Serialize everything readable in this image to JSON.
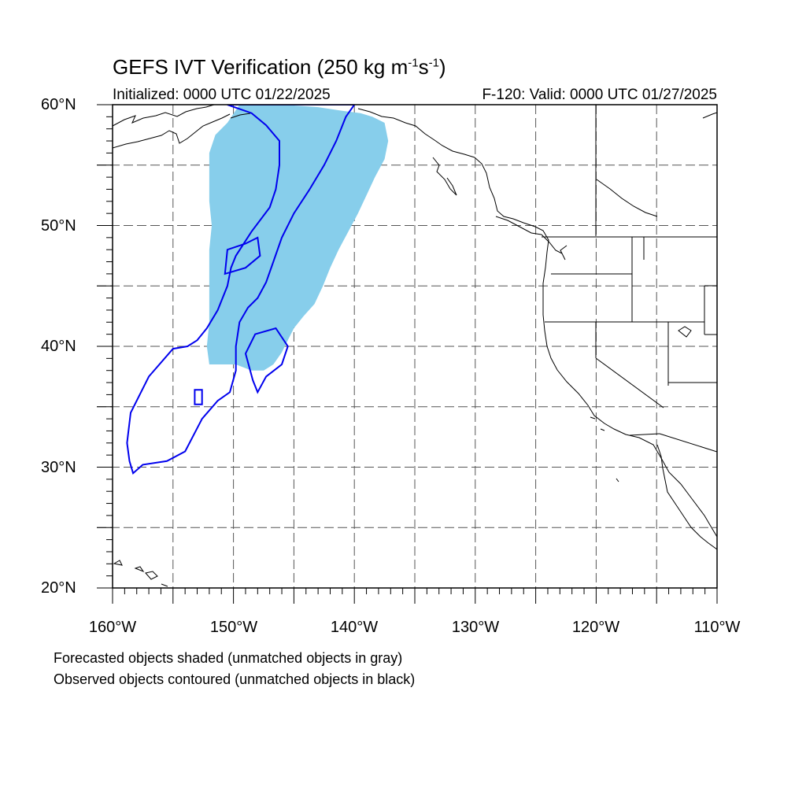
{
  "title": {
    "main": "GEFS IVT Verification (250 kg m",
    "exp1": "-1",
    "mid": "s",
    "exp2": "-1",
    "end": ")"
  },
  "subtitle": {
    "initialized": "Initialized: 0000 UTC 01/22/2025",
    "valid": "F-120: Valid: 0000 UTC 01/27/2025"
  },
  "axes": {
    "lon_range": [
      -160,
      -110
    ],
    "lat_range": [
      20,
      60
    ],
    "lat_labels": [
      "60°N",
      "50°N",
      "40°N",
      "30°N",
      "20°N"
    ],
    "lon_labels": [
      "160°W",
      "150°W",
      "140°W",
      "130°W",
      "120°W",
      "110°W"
    ],
    "grid_spacing_deg": 5,
    "grid_style": "dashed"
  },
  "legend": {
    "line1": "Forecasted objects shaded (unmatched objects in gray)",
    "line2": "Observed objects contoured (unmatched objects in black)"
  },
  "colors": {
    "forecast_fill": "#87ceeb",
    "observed_contour": "#0000ee",
    "coastline": "#000000",
    "grid": "#555555"
  },
  "forecast_object": {
    "polygon_lonlat": [
      [
        -149.5,
        60
      ],
      [
        -146,
        60
      ],
      [
        -143,
        59.8
      ],
      [
        -141,
        59.5
      ],
      [
        -139.5,
        59.3
      ],
      [
        -138.5,
        59
      ],
      [
        -137.5,
        58.5
      ],
      [
        -137.2,
        57
      ],
      [
        -137.5,
        55.5
      ],
      [
        -138.3,
        54
      ],
      [
        -139,
        52.5
      ],
      [
        -139.7,
        51
      ],
      [
        -140.5,
        49.5
      ],
      [
        -141.3,
        48
      ],
      [
        -142,
        46.5
      ],
      [
        -142.6,
        45
      ],
      [
        -143.3,
        43.5
      ],
      [
        -144.2,
        42.5
      ],
      [
        -145,
        41.5
      ],
      [
        -145.5,
        40.5
      ],
      [
        -146,
        39.5
      ],
      [
        -146.7,
        38.5
      ],
      [
        -147.5,
        38
      ],
      [
        -148.5,
        38
      ],
      [
        -149.8,
        38.5
      ],
      [
        -151,
        38.5
      ],
      [
        -152,
        38.5
      ],
      [
        -152.2,
        40
      ],
      [
        -152,
        42
      ],
      [
        -152,
        44
      ],
      [
        -152,
        46
      ],
      [
        -152,
        48
      ],
      [
        -151.8,
        50
      ],
      [
        -152,
        52
      ],
      [
        -152,
        54
      ],
      [
        -152,
        56
      ],
      [
        -151.5,
        57.5
      ],
      [
        -150.5,
        58.5
      ]
    ]
  },
  "observed_objects": [
    {
      "polygon_lonlat": [
        [
          -150.5,
          60
        ],
        [
          -148.5,
          59.3
        ],
        [
          -147.3,
          58.3
        ],
        [
          -146.2,
          57
        ],
        [
          -146.2,
          55
        ],
        [
          -146.5,
          53
        ],
        [
          -147,
          51.5
        ],
        [
          -148.5,
          49.5
        ],
        [
          -149.8,
          47.5
        ],
        [
          -150.2,
          46.5
        ],
        [
          -150.5,
          45
        ],
        [
          -151.3,
          43
        ],
        [
          -152.2,
          41.5
        ],
        [
          -153,
          40.5
        ],
        [
          -153.8,
          40
        ],
        [
          -155,
          39.8
        ],
        [
          -157,
          37.5
        ],
        [
          -158.5,
          34.5
        ],
        [
          -158.8,
          32
        ],
        [
          -158.6,
          30.5
        ],
        [
          -158.3,
          29.5
        ],
        [
          -157.5,
          30.2
        ],
        [
          -155.5,
          30.5
        ],
        [
          -154,
          31.3
        ],
        [
          -152.6,
          34
        ],
        [
          -151.3,
          35.5
        ],
        [
          -150.3,
          36.2
        ],
        [
          -149.8,
          38
        ],
        [
          -149.8,
          40
        ],
        [
          -149.5,
          42
        ],
        [
          -148.8,
          43.2
        ],
        [
          -148,
          44
        ],
        [
          -147.3,
          45.3
        ],
        [
          -146.7,
          47
        ],
        [
          -146,
          49
        ],
        [
          -145,
          51
        ],
        [
          -143.7,
          53
        ],
        [
          -142.5,
          55
        ],
        [
          -141.5,
          57
        ],
        [
          -140.7,
          59
        ],
        [
          -140,
          60
        ]
      ]
    },
    {
      "polygon_lonlat": [
        [
          -149,
          39.4
        ],
        [
          -148.2,
          41
        ],
        [
          -146.5,
          41.5
        ],
        [
          -145.5,
          40
        ],
        [
          -146,
          38.5
        ],
        [
          -147.3,
          37.5
        ],
        [
          -148,
          36.2
        ],
        [
          -148.4,
          37.2
        ]
      ]
    },
    {
      "polygon_lonlat": [
        [
          -150.7,
          46
        ],
        [
          -150.5,
          48
        ],
        [
          -149,
          48.5
        ],
        [
          -148,
          49
        ],
        [
          -147.8,
          47.5
        ],
        [
          -149,
          46.5
        ]
      ]
    },
    {
      "polygon_lonlat": [
        [
          -153.2,
          35.2
        ],
        [
          -153.2,
          36.4
        ],
        [
          -152.6,
          36.4
        ],
        [
          -152.6,
          35.2
        ]
      ]
    }
  ]
}
